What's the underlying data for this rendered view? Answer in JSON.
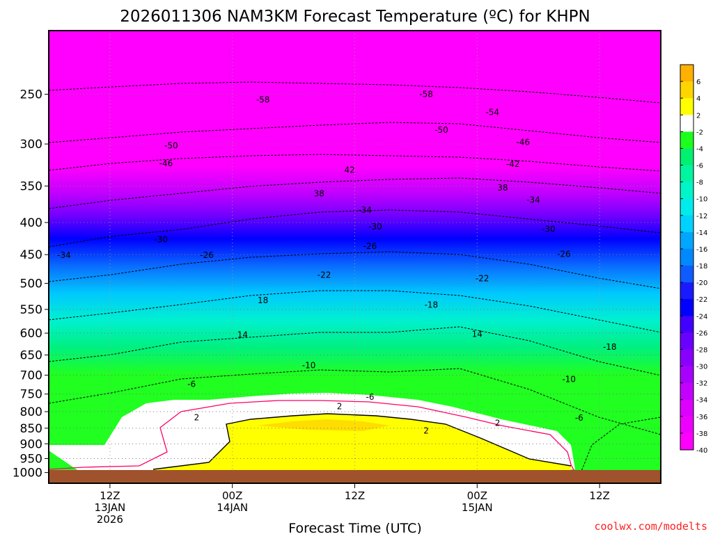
{
  "chart_data": {
    "type": "contour",
    "title": "2026011306 NAM3KM Forecast Temperature (ºC) for KHPN",
    "xlabel": "Forecast Time (UTC)",
    "ylabel": "",
    "credit": "coolwx.com/modelts",
    "y_axis": {
      "scale": "log",
      "ylim": [
        1040,
        198
      ],
      "ticks": [
        250,
        300,
        350,
        400,
        450,
        500,
        550,
        600,
        650,
        700,
        750,
        800,
        850,
        900,
        950,
        1000
      ],
      "tick_labels": [
        "250",
        "300",
        "350",
        "400",
        "450",
        "500",
        "550",
        "600",
        "650",
        "700",
        "750",
        "800",
        "850",
        "900",
        "950",
        "1000"
      ]
    },
    "x_axis": {
      "xlim_hours": [
        0,
        60
      ],
      "ticks_hours": [
        6,
        18,
        30,
        42,
        54
      ],
      "tick_labels": [
        [
          "12Z",
          "13JAN",
          "2026"
        ],
        [
          "00Z",
          "14JAN"
        ],
        [
          "12Z"
        ],
        [
          "00Z",
          "15JAN"
        ],
        [
          "12Z"
        ]
      ]
    },
    "grid": true,
    "colorbar": {
      "position": "right",
      "levels": [
        -40,
        -38,
        -36,
        -34,
        -32,
        -30,
        -28,
        -26,
        -24,
        -22,
        -20,
        -18,
        -16,
        -14,
        -12,
        -10,
        -8,
        -6,
        -4,
        -2,
        2,
        4,
        6
      ],
      "labels": [
        "6",
        "4",
        "2",
        "-2",
        "-4",
        "-6",
        "-8",
        "-10",
        "-12",
        "-14",
        "-16",
        "-18",
        "-20",
        "-22",
        "-24",
        "-26",
        "-28",
        "-30",
        "-32",
        "-34",
        "-36",
        "-38",
        "-40"
      ],
      "colors": [
        "#ff00ff",
        "#ee00ff",
        "#dd00ff",
        "#c400ff",
        "#a800ff",
        "#8a00ff",
        "#6a00ff",
        "#4200ff",
        "#0000ff",
        "#1a1aff",
        "#0e5cff",
        "#0088ff",
        "#00a6ff",
        "#00d2ff",
        "#00ecec",
        "#00f5c8",
        "#00f5a0",
        "#00f070",
        "#1dff1d",
        "#ffffff",
        "#ffff00",
        "#ffd500",
        "#ffb000"
      ]
    },
    "series": [
      {
        "values": [
          {
            "x": 0,
            "y": 1000,
            "v": -3
          },
          {
            "x": 6,
            "y": 900,
            "v": -2
          },
          {
            "x": 18,
            "y": 870,
            "v": 2
          },
          {
            "x": 30,
            "y": 870,
            "v": 3
          },
          {
            "x": 42,
            "y": 880,
            "v": 2
          },
          {
            "x": 54,
            "y": 950,
            "v": -4
          }
        ]
      }
    ],
    "contour_labels": [
      {
        "text": "-58",
        "x": 21,
        "y": 255
      },
      {
        "text": "-58",
        "x": 37,
        "y": 250
      },
      {
        "text": "-54",
        "x": 43.5,
        "y": 267
      },
      {
        "text": "-50",
        "x": 12,
        "y": 302
      },
      {
        "text": "-50",
        "x": 38.5,
        "y": 285
      },
      {
        "text": "-46",
        "x": 11.5,
        "y": 322
      },
      {
        "text": "-46",
        "x": 46.5,
        "y": 298
      },
      {
        "text": "42",
        "x": 29.5,
        "y": 330
      },
      {
        "text": "-42",
        "x": 45.5,
        "y": 323
      },
      {
        "text": "38",
        "x": 26.5,
        "y": 360
      },
      {
        "text": "38",
        "x": 44.5,
        "y": 352
      },
      {
        "text": "-34",
        "x": 1.5,
        "y": 451
      },
      {
        "text": "-34",
        "x": 31,
        "y": 382
      },
      {
        "text": "-34",
        "x": 47.5,
        "y": 368
      },
      {
        "text": "-30",
        "x": 11,
        "y": 426
      },
      {
        "text": "-30",
        "x": 32,
        "y": 406
      },
      {
        "text": "-30",
        "x": 49,
        "y": 410
      },
      {
        "text": "-26",
        "x": 15.5,
        "y": 451
      },
      {
        "text": "-26",
        "x": 31.5,
        "y": 436
      },
      {
        "text": "-26",
        "x": 50.5,
        "y": 449
      },
      {
        "text": "-22",
        "x": 27,
        "y": 485
      },
      {
        "text": "-22",
        "x": 42.5,
        "y": 491
      },
      {
        "text": "18",
        "x": 21,
        "y": 532
      },
      {
        "text": "-18",
        "x": 37.5,
        "y": 541
      },
      {
        "text": "-18",
        "x": 55,
        "y": 631
      },
      {
        "text": "14",
        "x": 19,
        "y": 604
      },
      {
        "text": "14",
        "x": 42,
        "y": 602
      },
      {
        "text": "-10",
        "x": 25.5,
        "y": 675
      },
      {
        "text": "-10",
        "x": 51,
        "y": 711
      },
      {
        "text": "-6",
        "x": 14,
        "y": 723
      },
      {
        "text": "-6",
        "x": 31.5,
        "y": 758
      },
      {
        "text": "-6",
        "x": 52,
        "y": 819
      },
      {
        "text": "2",
        "x": 14.5,
        "y": 817
      },
      {
        "text": "2",
        "x": 28.5,
        "y": 785
      },
      {
        "text": "2",
        "x": 37,
        "y": 858
      },
      {
        "text": "2",
        "x": 44,
        "y": 834
      }
    ]
  }
}
